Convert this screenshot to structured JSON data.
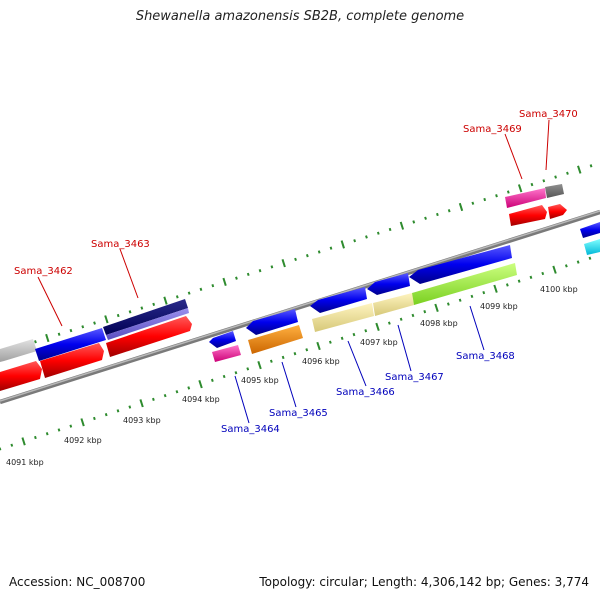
{
  "title": "Shewanella amazonensis SB2B, complete genome",
  "footer": {
    "accession": "Accession: NC_008700",
    "summary": "Topology: circular; Length: 4,306,142 bp; Genes: 3,774"
  },
  "colors": {
    "backbone": "#8a8a8a",
    "tick": "#2e8b2e",
    "forward_label": "#cc0000",
    "reverse_label": "#0000bb",
    "coding": "#0000ee",
    "rna": "#ff0000",
    "pseudo": "#c0c0c0",
    "hypothetical": "#ff3399",
    "other": "#ff8800"
  },
  "scale_labels": [
    "4091 kbp",
    "4092 kbp",
    "4093 kbp",
    "4094 kbp",
    "4095 kbp",
    "4096 kbp",
    "4097 kbp",
    "4098 kbp",
    "4099 kbp",
    "4100 kbp"
  ],
  "forward_genes": [
    "Sama_3462",
    "Sama_3463",
    "Sama_3469",
    "Sama_3470"
  ],
  "reverse_genes": [
    "Sama_3464",
    "Sama_3465",
    "Sama_3466",
    "Sama_3467",
    "Sama_3468"
  ]
}
